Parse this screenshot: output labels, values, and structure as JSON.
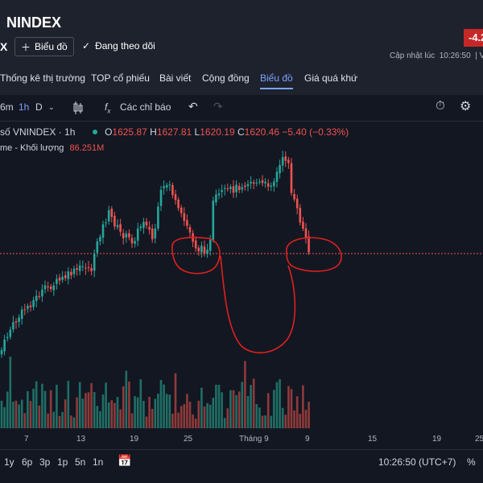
{
  "header": {
    "title": "NINDEX",
    "ticker": "X",
    "chart_button_label": "Biểu đồ",
    "follow_label": "Đang theo dõi",
    "change_badge": "-4.2",
    "updated_label": "Cập nhật lúc",
    "updated_time": "10:26:50",
    "updated_suffix": "| Vi"
  },
  "tabs": [
    {
      "label": "Thống kê thị trường",
      "active": false
    },
    {
      "label": "TOP cổ phiếu",
      "active": false
    },
    {
      "label": "Bài viết",
      "active": false
    },
    {
      "label": "Cộng đồng",
      "active": false
    },
    {
      "label": "Biểu đồ",
      "active": true
    },
    {
      "label": "Giá quá khứ",
      "active": false
    }
  ],
  "toolbar": {
    "intervals": [
      "6m",
      "1h",
      "D"
    ],
    "active_interval": "1h",
    "indicators_label": "Các chỉ báo"
  },
  "legend": {
    "symbol": "số VNINDEX · 1h",
    "open_label": "O",
    "open": "1625.87",
    "high_label": "H",
    "high": "1627.81",
    "low_label": "L",
    "low": "1620.19",
    "close_label": "C",
    "close": "1620.46",
    "change": "−5.40 (−0.33%)",
    "volume_label": "me - Khối lượng",
    "volume_value": "86.251M"
  },
  "xaxis_labels": [
    "7",
    "13",
    "19",
    "25",
    "Tháng 9",
    "9",
    "15",
    "19",
    "25"
  ],
  "bottom_bar": {
    "ranges": [
      "1y",
      "6p",
      "3p",
      "1p",
      "5n",
      "1n"
    ],
    "clock": "10:26:50 (UTC+7)",
    "scale": "%"
  },
  "colors": {
    "up": "#26a69a",
    "down": "#ef5350",
    "annotation": "#e0201e",
    "active_tab": "#7aa3ff"
  },
  "chart_data": {
    "type": "candlestick",
    "symbol": "VNINDEX",
    "interval": "1h",
    "last_close": 1620.46,
    "x_tick_labels": [
      "7",
      "13",
      "19",
      "25",
      "Tháng 9",
      "9",
      "15",
      "19",
      "25"
    ]
  }
}
